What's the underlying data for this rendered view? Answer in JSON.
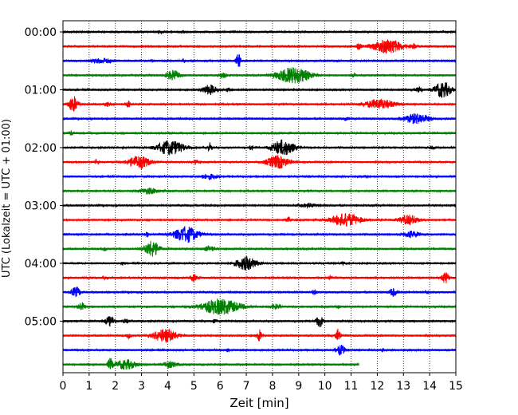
{
  "chart_data": {
    "type": "line",
    "title": "",
    "xlabel": "Zeit  [min]",
    "ylabel": "UTC (Lokalzeit = UTC + 01:00)",
    "xlim": [
      0,
      15
    ],
    "xticks": [
      0,
      1,
      2,
      3,
      4,
      5,
      6,
      7,
      8,
      9,
      10,
      11,
      12,
      13,
      14,
      15
    ],
    "xtick_labels": [
      "0",
      "1",
      "2",
      "3",
      "4",
      "5",
      "6",
      "7",
      "8",
      "9",
      "10",
      "11",
      "12",
      "13",
      "14",
      "15"
    ],
    "ytick_labels": [
      "00:00",
      "01:00",
      "02:00",
      "03:00",
      "04:00",
      "05:00"
    ],
    "ytick_rows": [
      0,
      4,
      8,
      12,
      16,
      20
    ],
    "row_minutes": 15,
    "grid_x": true,
    "colors": [
      "#000000",
      "#ff0000",
      "#0000ff",
      "#008000"
    ],
    "rows": [
      {
        "start": "00:00",
        "end_min": 15,
        "bursts": [
          [
            3.7,
            0.3,
            0.15
          ],
          [
            4.6,
            0.2,
            0.15
          ]
        ]
      },
      {
        "start": "00:15",
        "end_min": 15,
        "bursts": [
          [
            12.4,
            1.2,
            0.9
          ],
          [
            11.3,
            0.2,
            0.4
          ],
          [
            13.4,
            0.2,
            0.3
          ]
        ]
      },
      {
        "start": "00:30",
        "end_min": 15,
        "bursts": [
          [
            1.5,
            0.9,
            0.3
          ],
          [
            6.7,
            0.2,
            0.9
          ],
          [
            4.6,
            0.1,
            0.3
          ],
          [
            3.4,
            0.2,
            0.15
          ]
        ]
      },
      {
        "start": "00:45",
        "end_min": 15,
        "bursts": [
          [
            4.2,
            0.6,
            0.6
          ],
          [
            8.8,
            1.4,
            1.0
          ],
          [
            6.1,
            0.3,
            0.3
          ],
          [
            11.1,
            0.2,
            0.2
          ]
        ]
      },
      {
        "start": "01:00",
        "end_min": 15,
        "bursts": [
          [
            5.6,
            0.6,
            0.6
          ],
          [
            14.5,
            0.7,
            1.0
          ],
          [
            13.6,
            0.3,
            0.3
          ],
          [
            6.3,
            0.2,
            0.2
          ]
        ]
      },
      {
        "start": "01:15",
        "end_min": 15,
        "bursts": [
          [
            0.4,
            0.4,
            1.0
          ],
          [
            12.1,
            1.3,
            0.6
          ],
          [
            1.7,
            0.2,
            0.3
          ],
          [
            2.5,
            0.2,
            0.4
          ]
        ]
      },
      {
        "start": "01:30",
        "end_min": 15,
        "bursts": [
          [
            13.5,
            1.1,
            0.6
          ],
          [
            10.8,
            0.2,
            0.2
          ]
        ]
      },
      {
        "start": "01:45",
        "end_min": 15,
        "bursts": [
          [
            0.3,
            0.2,
            0.2
          ]
        ]
      },
      {
        "start": "02:00",
        "end_min": 15,
        "bursts": [
          [
            4.1,
            1.1,
            0.9
          ],
          [
            8.4,
            0.9,
            1.0
          ],
          [
            5.6,
            0.2,
            0.6
          ],
          [
            7.2,
            0.2,
            0.3
          ],
          [
            14.1,
            0.2,
            0.2
          ]
        ]
      },
      {
        "start": "02:15",
        "end_min": 15,
        "bursts": [
          [
            2.9,
            0.9,
            0.8
          ],
          [
            8.2,
            0.9,
            0.8
          ],
          [
            5.1,
            0.2,
            0.3
          ],
          [
            1.3,
            0.2,
            0.3
          ]
        ]
      },
      {
        "start": "02:30",
        "end_min": 15,
        "bursts": [
          [
            5.6,
            0.7,
            0.3
          ],
          [
            11.6,
            0.2,
            0.15
          ]
        ]
      },
      {
        "start": "02:45",
        "end_min": 15,
        "bursts": [
          [
            3.3,
            0.8,
            0.35
          ]
        ]
      },
      {
        "start": "03:00",
        "end_min": 15,
        "bursts": [
          [
            9.4,
            0.8,
            0.2
          ]
        ]
      },
      {
        "start": "03:15",
        "end_min": 15,
        "bursts": [
          [
            10.8,
            1.2,
            0.8
          ],
          [
            13.2,
            0.8,
            0.6
          ],
          [
            8.6,
            0.2,
            0.3
          ]
        ]
      },
      {
        "start": "03:30",
        "end_min": 15,
        "bursts": [
          [
            4.7,
            1.0,
            1.0
          ],
          [
            13.3,
            0.7,
            0.4
          ],
          [
            3.2,
            0.2,
            0.3
          ]
        ]
      },
      {
        "start": "03:45",
        "end_min": 15,
        "bursts": [
          [
            3.4,
            0.6,
            1.0
          ],
          [
            5.6,
            0.5,
            0.3
          ],
          [
            1.6,
            0.2,
            0.2
          ]
        ]
      },
      {
        "start": "04:00",
        "end_min": 15,
        "bursts": [
          [
            7.0,
            0.9,
            0.8
          ],
          [
            10.7,
            0.2,
            0.15
          ],
          [
            2.3,
            0.2,
            0.15
          ]
        ]
      },
      {
        "start": "04:15",
        "end_min": 15,
        "bursts": [
          [
            14.6,
            0.3,
            0.7
          ],
          [
            5.0,
            0.3,
            0.4
          ],
          [
            10.2,
            0.2,
            0.2
          ],
          [
            1.6,
            0.2,
            0.15
          ]
        ]
      },
      {
        "start": "04:30",
        "end_min": 15,
        "bursts": [
          [
            0.5,
            0.4,
            0.6
          ],
          [
            12.6,
            0.3,
            0.5
          ],
          [
            9.6,
            0.2,
            0.3
          ],
          [
            13.9,
            0.2,
            0.2
          ]
        ]
      },
      {
        "start": "04:45",
        "end_min": 15,
        "bursts": [
          [
            6.0,
            1.6,
            1.0
          ],
          [
            0.7,
            0.3,
            0.5
          ],
          [
            8.1,
            0.4,
            0.3
          ],
          [
            10.5,
            0.2,
            0.2
          ]
        ]
      },
      {
        "start": "05:00",
        "end_min": 15,
        "bursts": [
          [
            1.8,
            0.4,
            0.6
          ],
          [
            9.8,
            0.3,
            0.7
          ],
          [
            2.4,
            0.2,
            0.3
          ],
          [
            5.8,
            0.2,
            0.2
          ]
        ]
      },
      {
        "start": "05:15",
        "end_min": 15,
        "bursts": [
          [
            3.9,
            1.0,
            0.8
          ],
          [
            7.5,
            0.2,
            0.8
          ],
          [
            10.5,
            0.2,
            0.8
          ],
          [
            2.5,
            0.2,
            0.3
          ]
        ]
      },
      {
        "start": "05:30",
        "end_min": 15,
        "bursts": [
          [
            10.6,
            0.4,
            0.6
          ],
          [
            6.3,
            0.1,
            0.3
          ],
          [
            12.2,
            0.2,
            0.2
          ]
        ]
      },
      {
        "start": "05:45",
        "end_min": 11.3,
        "bursts": [
          [
            2.4,
            0.9,
            0.6
          ],
          [
            1.8,
            0.2,
            0.7
          ],
          [
            4.1,
            0.6,
            0.35
          ]
        ]
      }
    ]
  }
}
